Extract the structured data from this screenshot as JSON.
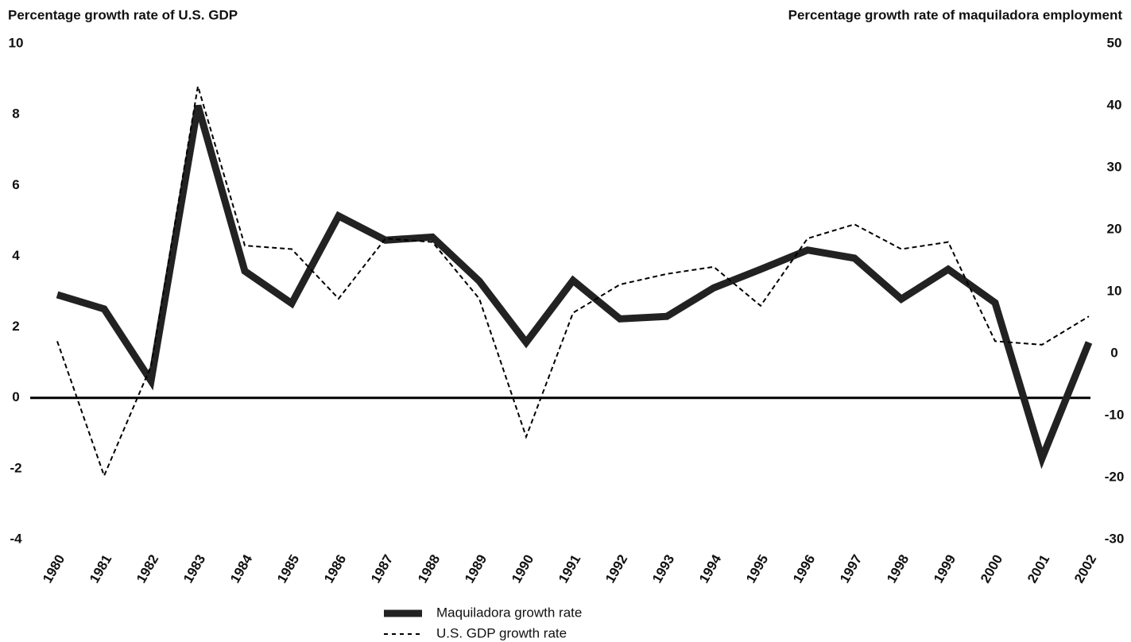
{
  "chart_data": {
    "type": "line",
    "y_label": "Percentage growth rate of U.S. GDP",
    "y2_label": "Percentage growth rate of maquiladora employment",
    "categories": [
      "1980",
      "1981",
      "1982",
      "1983",
      "1984",
      "1985",
      "1986",
      "1987",
      "1988",
      "1989",
      "1990",
      "1991",
      "1992",
      "1993",
      "1994",
      "1995",
      "1996",
      "1997",
      "1998",
      "1999",
      "2000",
      "2001",
      "2002"
    ],
    "series": [
      {
        "name": "Maquiladora growth rate",
        "color": "#222222",
        "axis": "y2",
        "style": "solid",
        "values": [
          9.5,
          7.2,
          -4.4,
          40,
          13.3,
          8.1,
          22.2,
          18.3,
          18.8,
          11.7,
          1.8,
          11.8,
          5.6,
          6.0,
          10.6,
          13.6,
          16.7,
          15.4,
          8.8,
          13.6,
          8.2,
          -16.9,
          1.8
        ]
      },
      {
        "name": "U.S. GDP growth rate",
        "color": "#000000",
        "axis": "y",
        "style": "dashed",
        "values": [
          1.6,
          -2.2,
          0.9,
          8.8,
          4.3,
          4.2,
          2.8,
          4.5,
          4.4,
          2.8,
          -1.1,
          2.4,
          3.2,
          3.5,
          3.7,
          2.6,
          4.5,
          4.9,
          4.2,
          4.4,
          1.6,
          1.5,
          2.3
        ]
      }
    ],
    "ylim": [
      -4,
      10
    ],
    "yticks": [
      -4,
      -2,
      0,
      2,
      4,
      6,
      8,
      10
    ],
    "y2lim": [
      -30,
      50
    ],
    "y2ticks": [
      -30,
      -20,
      -10,
      0,
      10,
      20,
      30,
      40,
      50
    ]
  }
}
